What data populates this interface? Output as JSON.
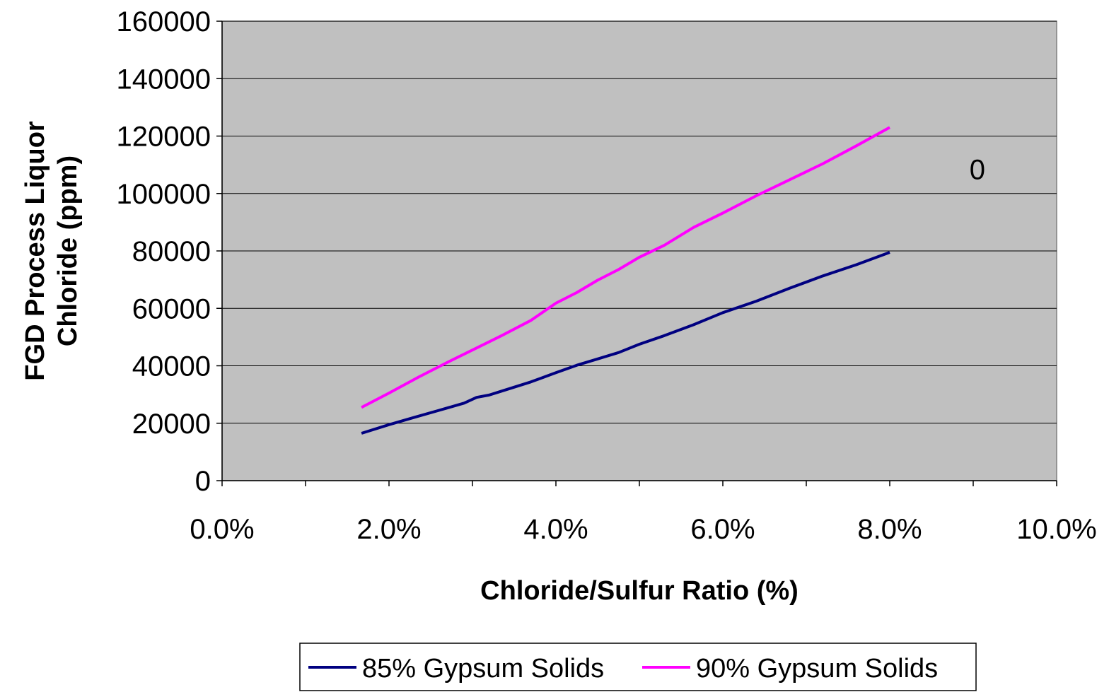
{
  "chart_data": {
    "type": "line",
    "title": "",
    "xlabel": "Chloride/Sulfur Ratio (%)",
    "ylabel": [
      "FGD Process Liquor",
      "Chloride (ppm)"
    ],
    "xlim": [
      0,
      10
    ],
    "ylim": [
      0,
      160000
    ],
    "x_ticks": [
      0,
      2,
      4,
      6,
      8,
      10
    ],
    "x_tick_labels": [
      "0.0%",
      "2.0%",
      "4.0%",
      "6.0%",
      "8.0%",
      "10.0%"
    ],
    "y_ticks": [
      0,
      20000,
      40000,
      60000,
      80000,
      100000,
      120000,
      140000,
      160000
    ],
    "y_tick_labels": [
      "0",
      "20000",
      "40000",
      "60000",
      "80000",
      "100000",
      "120000",
      "140000",
      "160000"
    ],
    "grid": "horizontal",
    "plot_background": "#c0c0c0",
    "legend_position": "bottom",
    "annotation": "0",
    "annotation_at": [
      9.05,
      106500
    ],
    "series": [
      {
        "name": "85% Gypsum Solids",
        "color": "#000080",
        "x": [
          1.67,
          2.0,
          2.3,
          2.6,
          2.9,
          3.05,
          3.2,
          3.35,
          3.7,
          4.0,
          4.25,
          4.5,
          4.75,
          5.0,
          5.3,
          5.65,
          6.0,
          6.4,
          6.8,
          7.2,
          7.6,
          8.0
        ],
        "y": [
          16500,
          19500,
          22000,
          24500,
          27000,
          29000,
          29800,
          31200,
          34400,
          37600,
          40200,
          42400,
          44600,
          47500,
          50500,
          54300,
          58500,
          62500,
          67000,
          71300,
          75200,
          79500
        ]
      },
      {
        "name": "90% Gypsum Solids",
        "color": "#ff00ff",
        "x": [
          1.67,
          2.0,
          2.35,
          2.7,
          3.0,
          3.35,
          3.7,
          4.0,
          4.25,
          4.5,
          4.75,
          5.0,
          5.3,
          5.65,
          6.0,
          6.4,
          6.8,
          7.2,
          7.6,
          8.0
        ],
        "y": [
          25500,
          30500,
          36000,
          41200,
          45500,
          50500,
          55800,
          61800,
          65500,
          69800,
          73500,
          77800,
          82000,
          88200,
          93200,
          99200,
          104800,
          110400,
          116600,
          123000
        ]
      }
    ]
  }
}
